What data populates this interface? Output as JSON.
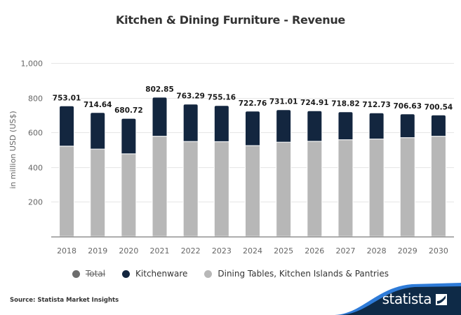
{
  "chart_data": {
    "type": "bar",
    "stacked": true,
    "title": "Kitchen & Dining Furniture - Revenue",
    "xlabel": "",
    "ylabel": "in million USD (US$)",
    "ylim": [
      0,
      1000
    ],
    "yticks": [
      200,
      400,
      600,
      800,
      1000
    ],
    "ytick_labels": [
      "200",
      "400",
      "600",
      "800",
      "1,000"
    ],
    "grid": true,
    "categories": [
      "2018",
      "2019",
      "2020",
      "2021",
      "2022",
      "2023",
      "2024",
      "2025",
      "2026",
      "2027",
      "2028",
      "2029",
      "2030"
    ],
    "series": [
      {
        "name": "Dining Tables, Kitchen Islands & Pantries",
        "color": "#b7b7b7",
        "values": [
          521,
          504,
          477,
          578,
          548,
          547,
          524,
          544,
          549,
          558,
          562,
          570,
          578
        ]
      },
      {
        "name": "Kitchenware",
        "color": "#13263f",
        "values": [
          232.01,
          210.64,
          203.72,
          224.85,
          215.29,
          208.16,
          198.76,
          187.01,
          175.91,
          160.82,
          150.73,
          136.63,
          122.54
        ]
      }
    ],
    "totals": [
      753.01,
      714.64,
      680.72,
      802.85,
      763.29,
      755.16,
      722.76,
      731.01,
      724.91,
      718.82,
      712.73,
      706.63,
      700.54
    ],
    "total_labels": [
      "753.01",
      "714.64",
      "680.72",
      "802.85",
      "763.29",
      "755.16",
      "722.76",
      "731.01",
      "724.91",
      "718.82",
      "712.73",
      "706.63",
      "700.54"
    ],
    "legend": [
      {
        "name": "Total",
        "color": "#6d6d6d",
        "hidden": true
      },
      {
        "name": "Kitchenware",
        "color": "#13263f",
        "hidden": false
      },
      {
        "name": "Dining Tables, Kitchen Islands & Pantries",
        "color": "#b7b7b7",
        "hidden": false
      }
    ],
    "legend_position": "bottom-center"
  },
  "footer": {
    "source": "Source: Statista Market Insights",
    "brand": "statista"
  },
  "colors": {
    "brand_dark": "#0e2a47",
    "brand_blue": "#2e7bd8",
    "grid": "#e6e6e6",
    "axis": "#666666"
  }
}
